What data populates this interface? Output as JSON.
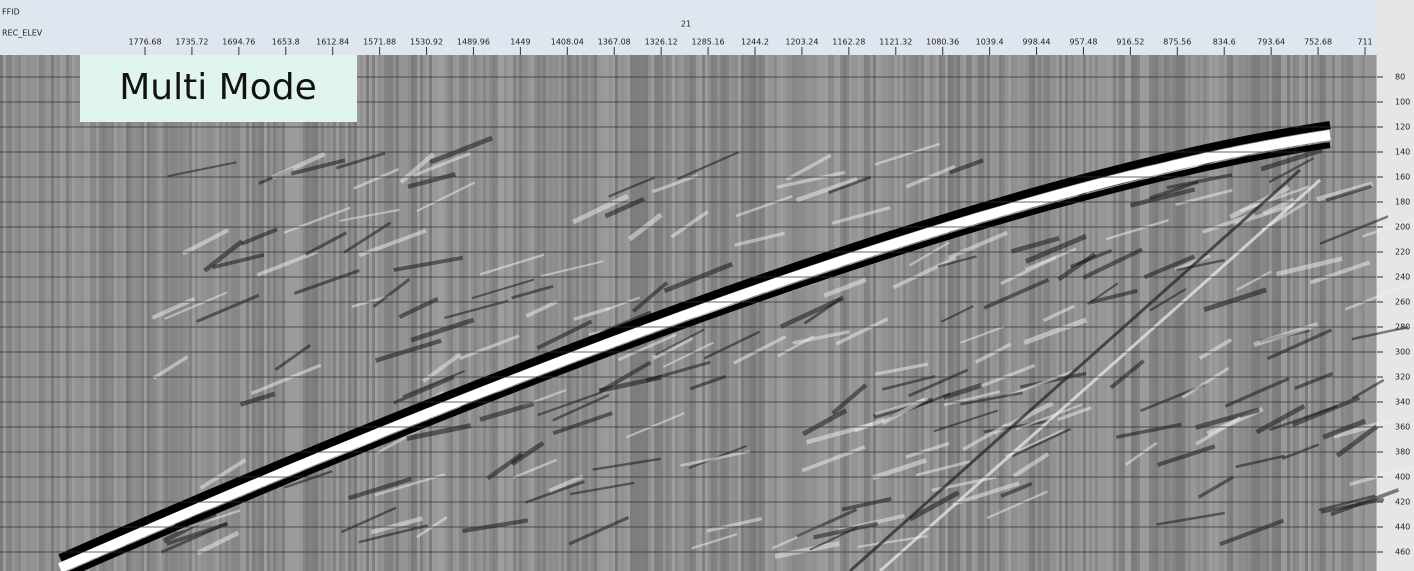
{
  "header": {
    "ffid": "FFID",
    "rec_elev": "REC_ELEV",
    "shot": "21"
  },
  "top_axis": {
    "labels": [
      1776.68,
      1735.72,
      1694.76,
      1653.8,
      1612.84,
      1571.88,
      1530.92,
      1489.96,
      1449,
      1408.04,
      1367.08,
      1326.12,
      1285.16,
      1244.2,
      1203.24,
      1162.28,
      1121.32,
      1080.36,
      1039.4,
      998.44,
      957.48,
      916.52,
      875.56,
      834.6,
      793.64,
      752.68,
      711
    ]
  },
  "right_axis": {
    "labels": [
      80,
      100,
      120,
      140,
      160,
      180,
      200,
      220,
      240,
      260,
      280,
      300,
      320,
      340,
      360,
      380,
      400,
      420,
      440,
      460
    ]
  },
  "overlay": {
    "label": "Multi Mode"
  }
}
